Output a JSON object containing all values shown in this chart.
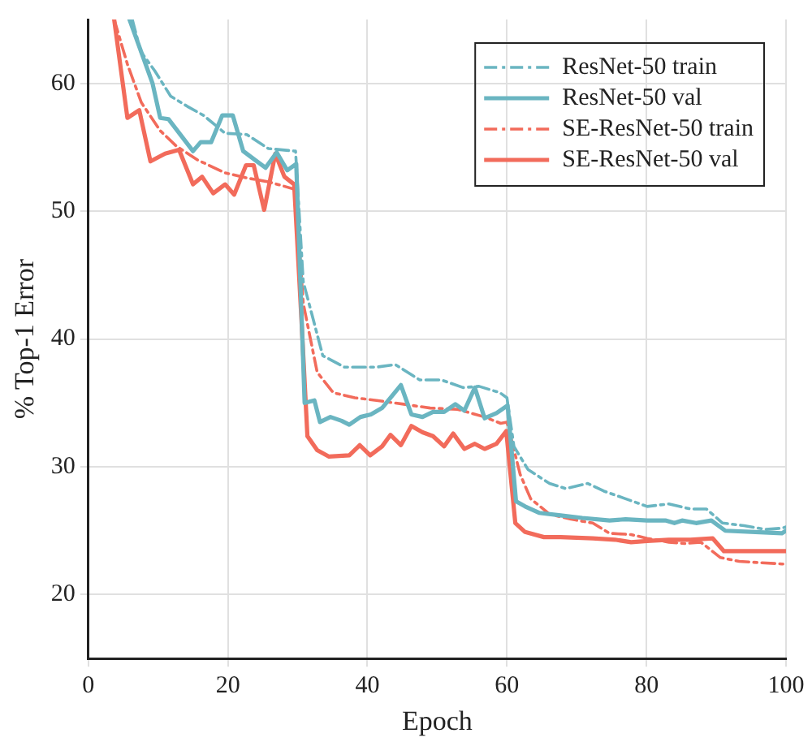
{
  "chart_data": {
    "type": "line",
    "xlabel": "Epoch",
    "ylabel": "% Top-1 Error",
    "xlim": [
      0,
      100
    ],
    "xticks": [
      0,
      20,
      40,
      60,
      80,
      100
    ],
    "ylim": [
      15,
      65
    ],
    "yticks": [
      20,
      30,
      40,
      50,
      60
    ],
    "grid": true,
    "legend": "top right",
    "marker": "none",
    "series": [
      {
        "name": "ResNet-50 train",
        "color": "#6ab5c1",
        "line_style": "dashed",
        "x": [
          6.3,
          7.5,
          9.5,
          11.8,
          14.2,
          16.5,
          19.6,
          22.7,
          25.8,
          29.7,
          30.8,
          33.6,
          36.7,
          41.3,
          44,
          47.5,
          50.6,
          53.7,
          56,
          59,
          60,
          61,
          63,
          66.1,
          68.4,
          71.6,
          73.9,
          77,
          80.1,
          83.2,
          86.3,
          88.6,
          90.9,
          94,
          97.1,
          99.4,
          100
        ],
        "values": [
          65,
          62.5,
          61,
          59,
          58.2,
          57.5,
          56.1,
          56,
          54.9,
          54.7,
          44.5,
          38.7,
          37.8,
          37.8,
          38,
          36.8,
          36.8,
          36.2,
          36.3,
          35.8,
          35.4,
          31.6,
          29.8,
          28.7,
          28.3,
          28.7,
          28.1,
          27.5,
          26.9,
          27.1,
          26.7,
          26.7,
          25.6,
          25.4,
          25.1,
          25.2,
          25.3
        ]
      },
      {
        "name": "ResNet-50 val",
        "color": "#6ab5c1",
        "line_style": "solid",
        "x": [
          5.9,
          9.2,
          10.3,
          11.5,
          15,
          16.1,
          17.6,
          19.2,
          20.7,
          22.2,
          23.9,
          25.4,
          27,
          28.5,
          29.8,
          31,
          32.4,
          33.2,
          34.7,
          36.3,
          37.4,
          39,
          40.5,
          42.1,
          44.8,
          46.3,
          47.9,
          49.4,
          51,
          52.6,
          53.9,
          55.4,
          56.8,
          58.5,
          60.1,
          61.3,
          62.6,
          64.6,
          67.7,
          70.8,
          74.7,
          77,
          80.1,
          82.8,
          84,
          85.1,
          87.1,
          89.3,
          91.3,
          95.6,
          99.4,
          100
        ],
        "values": [
          65,
          60,
          57.3,
          57.2,
          54.7,
          55.4,
          55.4,
          57.5,
          57.5,
          54.7,
          54,
          53.4,
          54.6,
          53.2,
          53.7,
          35,
          35.2,
          33.5,
          33.9,
          33.6,
          33.3,
          33.9,
          34.1,
          34.6,
          36.4,
          34.1,
          33.9,
          34.3,
          34.3,
          34.9,
          34.4,
          36.2,
          33.8,
          34.2,
          34.8,
          27.3,
          26.9,
          26.4,
          26.2,
          26,
          25.8,
          25.9,
          25.8,
          25.8,
          25.6,
          25.8,
          25.6,
          25.8,
          25,
          24.9,
          24.8,
          25
        ]
      },
      {
        "name": "SE-ResNet-50 train",
        "color": "#f26b5b",
        "line_style": "dashed",
        "x": [
          3.7,
          5.6,
          7.6,
          10.3,
          12.6,
          15.7,
          19.6,
          22.7,
          25.8,
          29.7,
          30.8,
          32.8,
          35.1,
          38.2,
          41.3,
          45.2,
          49,
          52.9,
          56.8,
          59.1,
          60,
          61.9,
          63.4,
          66.1,
          69.2,
          72.3,
          74.7,
          77.8,
          80.1,
          83.2,
          85.5,
          87.8,
          90.6,
          93.3,
          96.4,
          99.4,
          100
        ],
        "values": [
          65,
          61.5,
          58.5,
          56.3,
          55.1,
          54,
          53,
          52.6,
          52.3,
          51.7,
          42.8,
          37.4,
          35.8,
          35.4,
          35.2,
          34.9,
          34.6,
          34.5,
          33.9,
          33.4,
          33.5,
          29.4,
          27.5,
          26.3,
          25.9,
          25.6,
          24.8,
          24.7,
          24.4,
          24.1,
          24,
          24.1,
          22.9,
          22.6,
          22.5,
          22.4,
          22.4
        ]
      },
      {
        "name": "SE-ResNet-50 val",
        "color": "#f26b5b",
        "line_style": "solid",
        "x": [
          3.7,
          5.6,
          7.3,
          8.9,
          11,
          13,
          15,
          16.3,
          17.9,
          19.6,
          20.9,
          22.6,
          23.7,
          25.2,
          26.8,
          28.1,
          29.5,
          30.5,
          31.4,
          32.8,
          34.5,
          37.4,
          38.9,
          40.4,
          42.1,
          43.3,
          44.8,
          46.3,
          47.9,
          49.4,
          51,
          52.3,
          53.9,
          55.4,
          56.8,
          58.5,
          59.9,
          61.2,
          62.6,
          65.3,
          67.7,
          72.3,
          75.5,
          77.8,
          80.1,
          83.2,
          86.3,
          89.5,
          91.1,
          95.6,
          99.4,
          100
        ],
        "values": [
          65,
          57.3,
          57.9,
          53.9,
          54.5,
          54.8,
          52.1,
          52.7,
          51.4,
          52.1,
          51.3,
          53.6,
          53.6,
          50.1,
          54.5,
          52.7,
          52.1,
          42,
          32.4,
          31.3,
          30.8,
          30.9,
          31.7,
          30.9,
          31.6,
          32.5,
          31.7,
          33.2,
          32.7,
          32.4,
          31.6,
          32.6,
          31.4,
          31.8,
          31.4,
          31.8,
          32.8,
          25.6,
          24.9,
          24.5,
          24.5,
          24.4,
          24.3,
          24.1,
          24.2,
          24.3,
          24.3,
          24.4,
          23.4,
          23.4,
          23.4,
          23.4
        ]
      }
    ]
  }
}
